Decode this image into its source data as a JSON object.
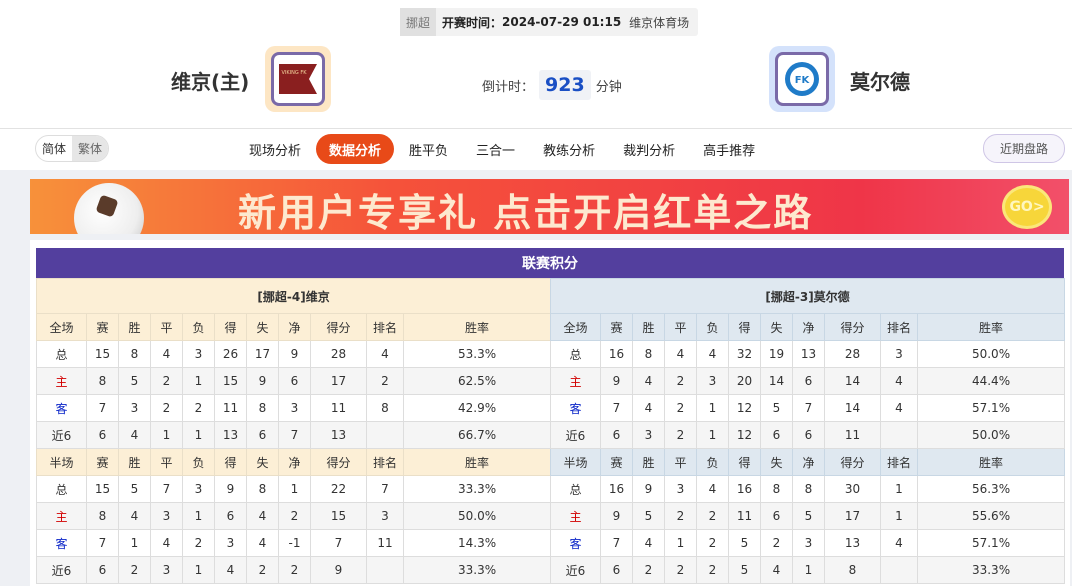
{
  "match": {
    "league": "挪超",
    "kickoff_label": "开赛时间：",
    "kickoff": "2024-07-29 01:15",
    "venue": "维京体育场"
  },
  "home": {
    "name": "维京(主)",
    "logo_text": "VIKING FK"
  },
  "away": {
    "name": "莫尔德",
    "logo_text": "MFK"
  },
  "countdown": {
    "label": "倒计时：",
    "value": "923",
    "unit": "分钟"
  },
  "lang": {
    "simplified": "简体",
    "traditional": "繁体"
  },
  "tabs": [
    {
      "label": "现场分析"
    },
    {
      "label": "数据分析",
      "active": true
    },
    {
      "label": "胜平负"
    },
    {
      "label": "三合一"
    },
    {
      "label": "教练分析"
    },
    {
      "label": "裁判分析"
    },
    {
      "label": "高手推荐"
    }
  ],
  "recent_button": "近期盘路",
  "banner": {
    "text": "新用户专享礼  点击开启红单之路",
    "go": "GO>"
  },
  "standings": {
    "title": "联赛积分",
    "columns": [
      "赛",
      "胜",
      "平",
      "负",
      "得",
      "失",
      "净",
      "得分",
      "排名",
      "胜率"
    ],
    "sections_labels": [
      "全场",
      "半场"
    ],
    "colors": {
      "home_label": "#d20000",
      "away_label": "#0a24c8",
      "header": "#533f9e"
    },
    "teams": [
      {
        "title": "[挪超-4]维京",
        "full": [
          [
            "总",
            "15",
            "8",
            "4",
            "3",
            "26",
            "17",
            "9",
            "28",
            "4",
            "53.3%"
          ],
          [
            "主",
            "8",
            "5",
            "2",
            "1",
            "15",
            "9",
            "6",
            "17",
            "2",
            "62.5%"
          ],
          [
            "客",
            "7",
            "3",
            "2",
            "2",
            "11",
            "8",
            "3",
            "11",
            "8",
            "42.9%"
          ],
          [
            "近6",
            "6",
            "4",
            "1",
            "1",
            "13",
            "6",
            "7",
            "13",
            "",
            "66.7%"
          ]
        ],
        "half": [
          [
            "总",
            "15",
            "5",
            "7",
            "3",
            "9",
            "8",
            "1",
            "22",
            "7",
            "33.3%"
          ],
          [
            "主",
            "8",
            "4",
            "3",
            "1",
            "6",
            "4",
            "2",
            "15",
            "3",
            "50.0%"
          ],
          [
            "客",
            "7",
            "1",
            "4",
            "2",
            "3",
            "4",
            "-1",
            "7",
            "11",
            "14.3%"
          ],
          [
            "近6",
            "6",
            "2",
            "3",
            "1",
            "4",
            "2",
            "2",
            "9",
            "",
            "33.3%"
          ]
        ]
      },
      {
        "title": "[挪超-3]莫尔德",
        "full": [
          [
            "总",
            "16",
            "8",
            "4",
            "4",
            "32",
            "19",
            "13",
            "28",
            "3",
            "50.0%"
          ],
          [
            "主",
            "9",
            "4",
            "2",
            "3",
            "20",
            "14",
            "6",
            "14",
            "4",
            "44.4%"
          ],
          [
            "客",
            "7",
            "4",
            "2",
            "1",
            "12",
            "5",
            "7",
            "14",
            "4",
            "57.1%"
          ],
          [
            "近6",
            "6",
            "3",
            "2",
            "1",
            "12",
            "6",
            "6",
            "11",
            "",
            "50.0%"
          ]
        ],
        "half": [
          [
            "总",
            "16",
            "9",
            "3",
            "4",
            "16",
            "8",
            "8",
            "30",
            "1",
            "56.3%"
          ],
          [
            "主",
            "9",
            "5",
            "2",
            "2",
            "11",
            "6",
            "5",
            "17",
            "1",
            "55.6%"
          ],
          [
            "客",
            "7",
            "4",
            "1",
            "2",
            "5",
            "2",
            "3",
            "13",
            "4",
            "57.1%"
          ],
          [
            "近6",
            "6",
            "2",
            "2",
            "2",
            "5",
            "4",
            "1",
            "8",
            "",
            "33.3%"
          ]
        ]
      }
    ]
  }
}
